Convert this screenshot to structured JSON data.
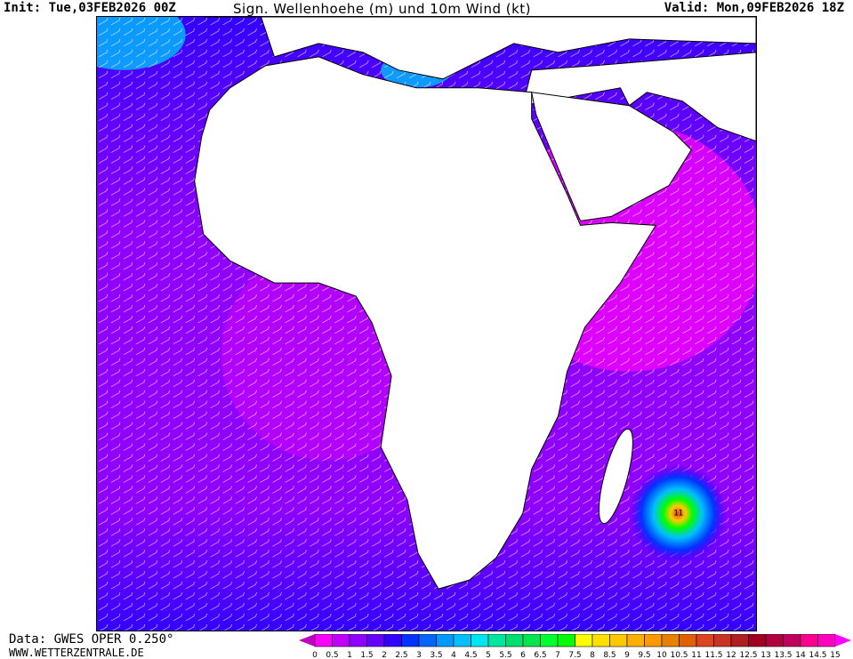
{
  "header": {
    "init": "Init: Tue,03FEB2026 00Z",
    "title": "Sign. Wellenhoehe (m) und 10m Wind (kt)",
    "valid": "Valid: Mon,09FEB2026 18Z"
  },
  "footer": {
    "data_source": "Data: GWES OPER 0.250°",
    "website": "WWW.WETTERZENTRALE.DE"
  },
  "legend": {
    "unit": "m",
    "ticks": [
      "0",
      "0.5",
      "1",
      "1.5",
      "2",
      "2.5",
      "3",
      "3.5",
      "4",
      "4.5",
      "5",
      "5.5",
      "6",
      "6.5",
      "7",
      "7.5",
      "8",
      "8.5",
      "9",
      "9.5",
      "10",
      "10.5",
      "11",
      "11.5",
      "12",
      "12.5",
      "13",
      "13.5",
      "14",
      "14.5",
      "15"
    ],
    "colors": [
      "#ff00ff",
      "#c000ff",
      "#9000ff",
      "#6600ff",
      "#3300ff",
      "#0033ff",
      "#0066ff",
      "#0099ff",
      "#00c0ff",
      "#00e6f0",
      "#00e6a0",
      "#00e070",
      "#00e650",
      "#00ff30",
      "#00ff00",
      "#ffff00",
      "#ffe000",
      "#ffc800",
      "#ffb000",
      "#ff9900",
      "#e88000",
      "#e06000",
      "#dd4422",
      "#cc3322",
      "#b02020",
      "#a00020",
      "#b00040",
      "#c00060",
      "#ff0090",
      "#ff00c0"
    ],
    "under_color": "#c000c0",
    "over_color": "#ff00ff"
  },
  "map": {
    "land_color": "#ffffff",
    "ocean_dominant_color": "#9000ff",
    "coast_color": "#000000",
    "storm_max_label": "11"
  }
}
